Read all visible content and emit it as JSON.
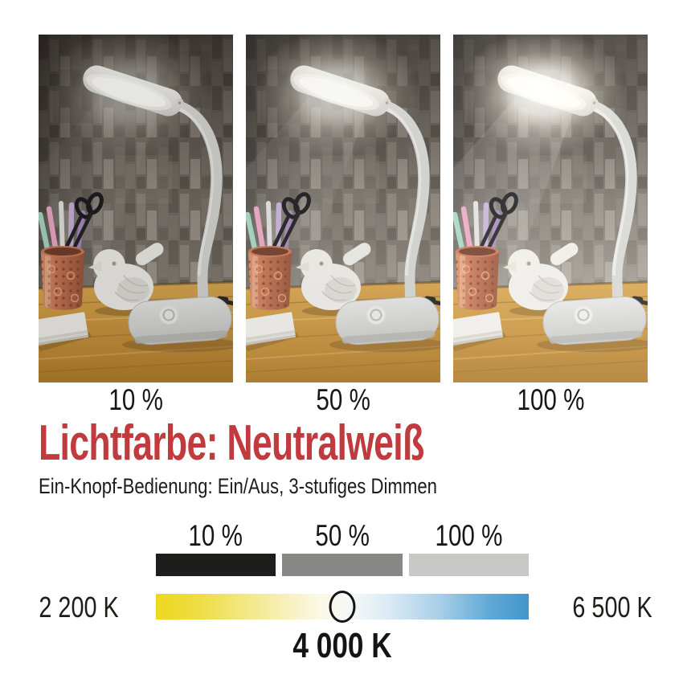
{
  "photo_strip": {
    "panels": [
      {
        "label": "10 %",
        "brightness_pct": 10
      },
      {
        "label": "50 %",
        "brightness_pct": 50
      },
      {
        "label": "100 %",
        "brightness_pct": 100
      }
    ]
  },
  "heading": {
    "text": "Lichtfarbe: Neutralweiß",
    "color": "#c13a3e"
  },
  "subheading": {
    "text": "Ein-Knopf-Bedienung: Ein/Aus, 3-stufiges Dimmen"
  },
  "dimming_scale": {
    "steps": [
      {
        "label": "10 %",
        "color": "#1d1d1b"
      },
      {
        "label": "50 %",
        "color": "#878786"
      },
      {
        "label": "100 %",
        "color": "#c8c8c7"
      }
    ]
  },
  "temperature_scale": {
    "min_label": "2 200 K",
    "max_label": "6 500 K",
    "current_label": "4 000 K",
    "marker_position_pct": 50,
    "marker_outline_color": "#141414",
    "gradient_stops": [
      "#eed71e 0%",
      "#efdd45 12%",
      "#f5eca4 30%",
      "#fbf8e6 44%",
      "#f6f8f6 52%",
      "#dcebf5 62%",
      "#a8cfe9 76%",
      "#5ea8d6 90%",
      "#4296cc 100%"
    ]
  }
}
